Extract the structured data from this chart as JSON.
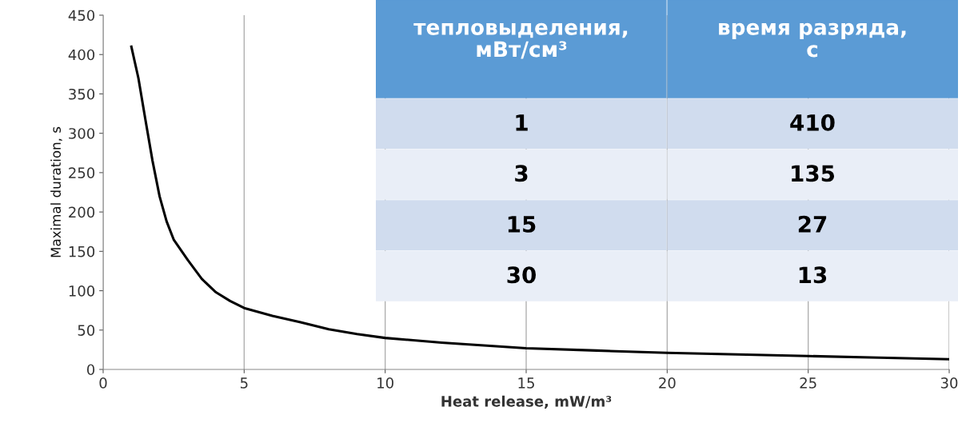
{
  "chart_data": [
    {
      "type": "line",
      "xlabel": "Heat release, mW/m³",
      "ylabel": "Maximal duration, s",
      "x": [
        1,
        1.25,
        1.5,
        1.75,
        2,
        2.25,
        2.5,
        3,
        3.5,
        4,
        4.5,
        5,
        6,
        7,
        8,
        9,
        10,
        12,
        15,
        17.5,
        20,
        22.5,
        25,
        27.5,
        30
      ],
      "series": [
        {
          "color": "#000000",
          "values": [
            410,
            370,
            317,
            265,
            220,
            188,
            165,
            139,
            115,
            98,
            87,
            78,
            68,
            60,
            51,
            45,
            40,
            34,
            27,
            24,
            21,
            19,
            17,
            15,
            13
          ]
        }
      ],
      "xlim": [
        0,
        30
      ],
      "ylim": [
        0,
        450
      ],
      "xticks": [
        0,
        5,
        10,
        15,
        20,
        25,
        30
      ],
      "yticks": [
        0,
        50,
        100,
        150,
        200,
        250,
        300,
        350,
        400,
        450
      ],
      "grid": "x",
      "marker": "none",
      "line_style": "solid",
      "legend": false
    },
    {
      "type": "other",
      "annotations": [
        "тепловыделения, мВт/см³",
        "время разряда, с",
        "1",
        "410",
        "3",
        "135",
        "15",
        "27",
        "30",
        "13"
      ]
    }
  ]
}
